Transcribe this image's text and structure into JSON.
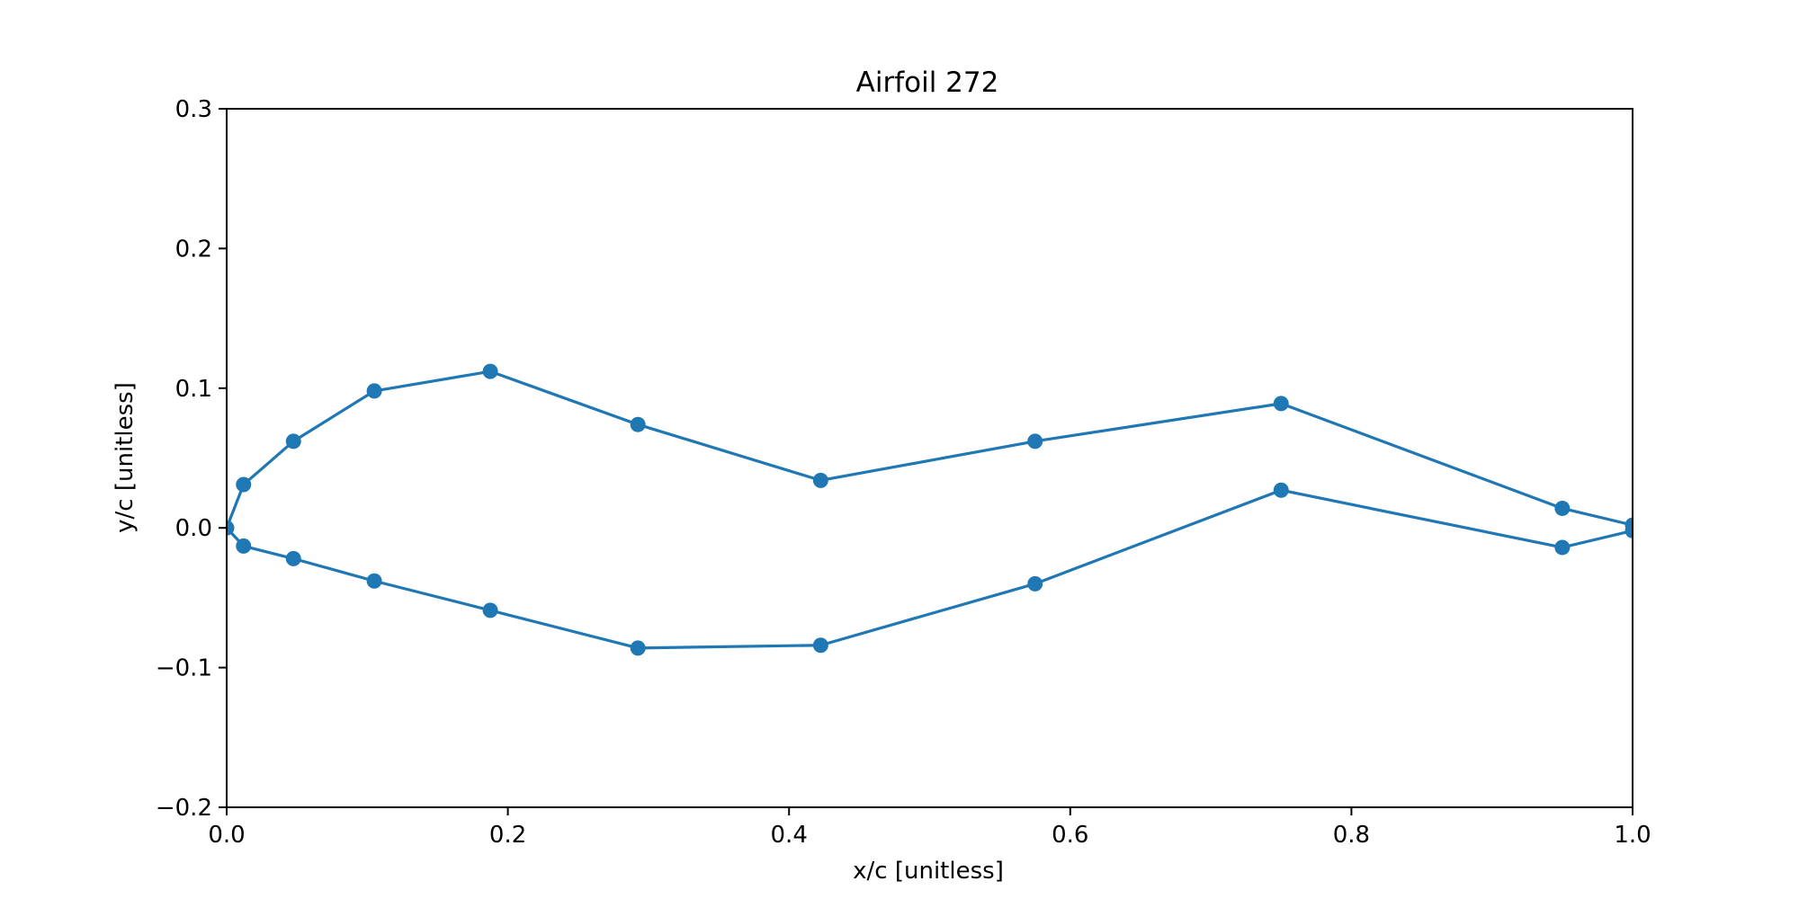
{
  "chart_data": {
    "type": "line",
    "title": "Airfoil 272",
    "xlabel": "x/c [unitless]",
    "ylabel": "y/c [unitless]",
    "xlim": [
      0.0,
      1.0
    ],
    "ylim": [
      -0.2,
      0.3
    ],
    "xticks": [
      0.0,
      0.2,
      0.4,
      0.6,
      0.8,
      1.0
    ],
    "xtick_labels": [
      "0.0",
      "0.2",
      "0.4",
      "0.6",
      "0.8",
      "1.0"
    ],
    "yticks": [
      -0.2,
      -0.1,
      0.0,
      0.1,
      0.2,
      0.3
    ],
    "ytick_labels": [
      "−0.2",
      "−0.1",
      "0.0",
      "0.1",
      "0.2",
      "0.3"
    ],
    "grid": false,
    "marker": "circle",
    "series": [
      {
        "color": "#1f77b4",
        "x": [
          1.0,
          0.95,
          0.75,
          0.575,
          0.4225,
          0.2925,
          0.1875,
          0.105,
          0.0475,
          0.012,
          0.0,
          0.012,
          0.0475,
          0.105,
          0.1875,
          0.2925,
          0.4225,
          0.575,
          0.75,
          0.95,
          1.0
        ],
        "y": [
          0.002,
          0.014,
          0.089,
          0.062,
          0.034,
          0.074,
          0.112,
          0.098,
          0.062,
          0.031,
          0.0,
          -0.013,
          -0.022,
          -0.038,
          -0.059,
          -0.086,
          -0.084,
          -0.04,
          0.027,
          -0.014,
          -0.002
        ]
      }
    ]
  }
}
